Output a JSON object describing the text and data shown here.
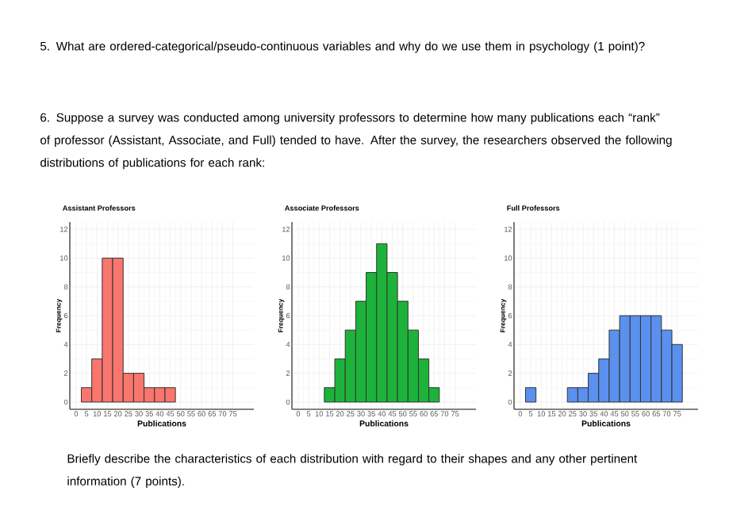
{
  "chart_data": [
    {
      "type": "histogram",
      "title": "Assistant Professors",
      "xlabel": "Publications",
      "ylabel": "Frequency",
      "color": "#f8766d",
      "bins": [
        2.5,
        7.5,
        12.5,
        17.5,
        22.5,
        27.5,
        32.5,
        37.5,
        42.5,
        47.5
      ],
      "values": [
        1,
        3,
        10,
        10,
        2,
        2,
        1,
        1,
        1
      ],
      "xlim": [
        -3,
        85
      ],
      "ylim": [
        -0.5,
        12.5
      ],
      "xticks": [
        0,
        5,
        10,
        15,
        20,
        25,
        30,
        35,
        40,
        45,
        50,
        55,
        60,
        65,
        70,
        75
      ],
      "yticks": [
        0,
        2,
        4,
        6,
        8,
        10,
        12
      ],
      "grid": true,
      "annotations": [
        "5. What are ordered-categorical/pseudo-continuous variables and why do we use them in psychology (1 point)?",
        "6. Suppose a survey was conducted among university professors to determine how many publications each “rank” of professor (Assistant, Associate, and Full) tended to have. After the survey, the researchers observed the following distributions of publications for each rank:",
        "Briefly describe the characteristics of each distribution with regard to their shapes and any other pertinent information (7 points)."
      ]
    },
    {
      "type": "histogram",
      "title": "Associate Professors",
      "xlabel": "Publications",
      "ylabel": "Frequency",
      "color": "#1db33a",
      "bins": [
        12.5,
        17.5,
        22.5,
        27.5,
        32.5,
        37.5,
        42.5,
        47.5,
        52.5,
        57.5,
        62.5,
        67.5
      ],
      "values": [
        1,
        3,
        5,
        7,
        9,
        11,
        9,
        7,
        5,
        3,
        1
      ],
      "xlim": [
        -3,
        85
      ],
      "ylim": [
        -0.5,
        12.5
      ],
      "xticks": [
        0,
        5,
        10,
        15,
        20,
        25,
        30,
        35,
        40,
        45,
        50,
        55,
        60,
        65,
        70,
        75
      ],
      "yticks": [
        0,
        2,
        4,
        6,
        8,
        10,
        12
      ],
      "grid": true
    },
    {
      "type": "histogram",
      "title": "Full Professors",
      "xlabel": "Publications",
      "ylabel": "Frequency",
      "color": "#5a90ee",
      "bins": [
        2.5,
        7.5,
        12.5,
        17.5,
        22.5,
        27.5,
        32.5,
        37.5,
        42.5,
        47.5,
        52.5,
        57.5,
        62.5,
        67.5,
        72.5,
        77.5
      ],
      "values": [
        1,
        0,
        0,
        0,
        1,
        1,
        2,
        3,
        5,
        6,
        6,
        6,
        6,
        5,
        4
      ],
      "xlim": [
        -3,
        85
      ],
      "ylim": [
        -0.5,
        12.5
      ],
      "xticks": [
        0,
        5,
        10,
        15,
        20,
        25,
        30,
        35,
        40,
        45,
        50,
        55,
        60,
        65,
        70,
        75
      ],
      "yticks": [
        0,
        2,
        4,
        6,
        8,
        10,
        12
      ],
      "grid": true
    }
  ]
}
